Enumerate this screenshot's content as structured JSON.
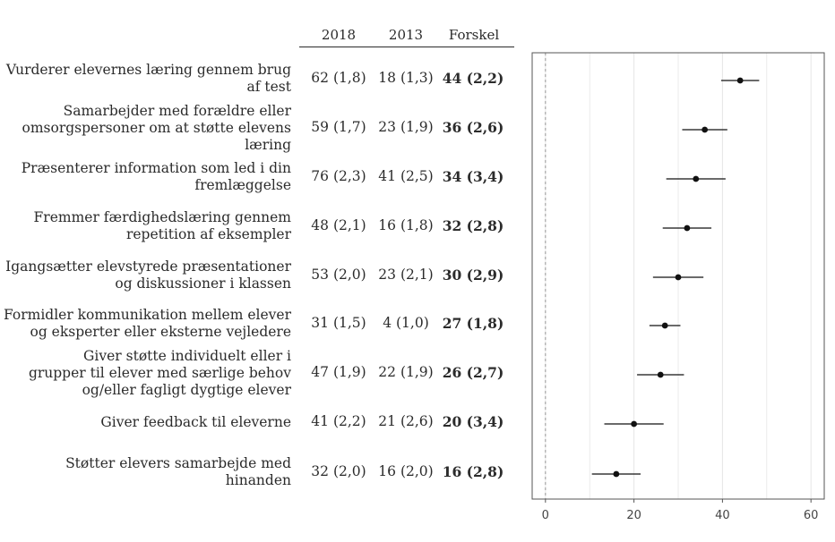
{
  "table": {
    "headers": [
      "2018",
      "2013",
      "Forskel"
    ],
    "rows": [
      {
        "label_lines": [
          "Vurderer elevernes læring gennem brug",
          "af test"
        ],
        "y2018": "62 (1,8)",
        "y2013": "18 (1,3)",
        "diff": "44 (2,2)"
      },
      {
        "label_lines": [
          "Samarbejder med forældre eller",
          "omsorgspersoner om at støtte elevens",
          "læring"
        ],
        "y2018": "59 (1,7)",
        "y2013": "23 (1,9)",
        "diff": "36 (2,6)"
      },
      {
        "label_lines": [
          "Præsenterer information som led i din",
          "fremlæggelse"
        ],
        "y2018": "76 (2,3)",
        "y2013": "41 (2,5)",
        "diff": "34 (3,4)"
      },
      {
        "label_lines": [
          "Fremmer færdighedslæring gennem",
          "repetition af eksempler"
        ],
        "y2018": "48 (2,1)",
        "y2013": "16 (1,8)",
        "diff": "32 (2,8)"
      },
      {
        "label_lines": [
          "Igangsætter elevstyrede præsentationer",
          "og diskussioner i klassen"
        ],
        "y2018": "53 (2,0)",
        "y2013": "23 (2,1)",
        "diff": "30 (2,9)"
      },
      {
        "label_lines": [
          "Formidler kommunikation mellem elever",
          "og eksperter eller eksterne vejledere"
        ],
        "y2018": "31 (1,5)",
        "y2013": "4 (1,0)",
        "diff": "27 (1,8)"
      },
      {
        "label_lines": [
          "Giver støtte individuelt eller i",
          "grupper til elever med særlige behov",
          "og/eller fagligt dygtige elever"
        ],
        "y2018": "47 (1,9)",
        "y2013": "22 (1,9)",
        "diff": "26 (2,7)"
      },
      {
        "label_lines": [
          "Giver feedback til eleverne"
        ],
        "y2018": "41 (2,2)",
        "y2013": "21 (2,6)",
        "diff": "20 (3,4)"
      },
      {
        "label_lines": [
          "Støtter elevers samarbejde med",
          "hinanden"
        ],
        "y2018": "32 (2,0)",
        "y2013": "16 (2,0)",
        "diff": "16 (2,8)"
      }
    ]
  },
  "chart_data": {
    "type": "scatter",
    "subtype": "point-with-error-bars",
    "xlim": [
      -3,
      63
    ],
    "xticks": [
      "0",
      "20",
      "40",
      "60"
    ],
    "xtick_values": [
      0,
      20,
      40,
      60
    ],
    "reference_line": 0,
    "grid": true,
    "points": [
      {
        "x": 44,
        "lo": 39.7,
        "hi": 48.3
      },
      {
        "x": 36,
        "lo": 30.9,
        "hi": 41.1
      },
      {
        "x": 34,
        "lo": 27.3,
        "hi": 40.7
      },
      {
        "x": 32,
        "lo": 26.5,
        "hi": 37.5
      },
      {
        "x": 30,
        "lo": 24.3,
        "hi": 35.7
      },
      {
        "x": 27,
        "lo": 23.5,
        "hi": 30.5
      },
      {
        "x": 26,
        "lo": 20.7,
        "hi": 31.3
      },
      {
        "x": 20,
        "lo": 13.3,
        "hi": 26.7
      },
      {
        "x": 16,
        "lo": 10.5,
        "hi": 21.5
      }
    ]
  },
  "colors": {
    "text": "#2b2b2b",
    "grid": "#e6e6e6",
    "frame": "#555555",
    "ref_line": "#999999",
    "point": "#111111"
  }
}
